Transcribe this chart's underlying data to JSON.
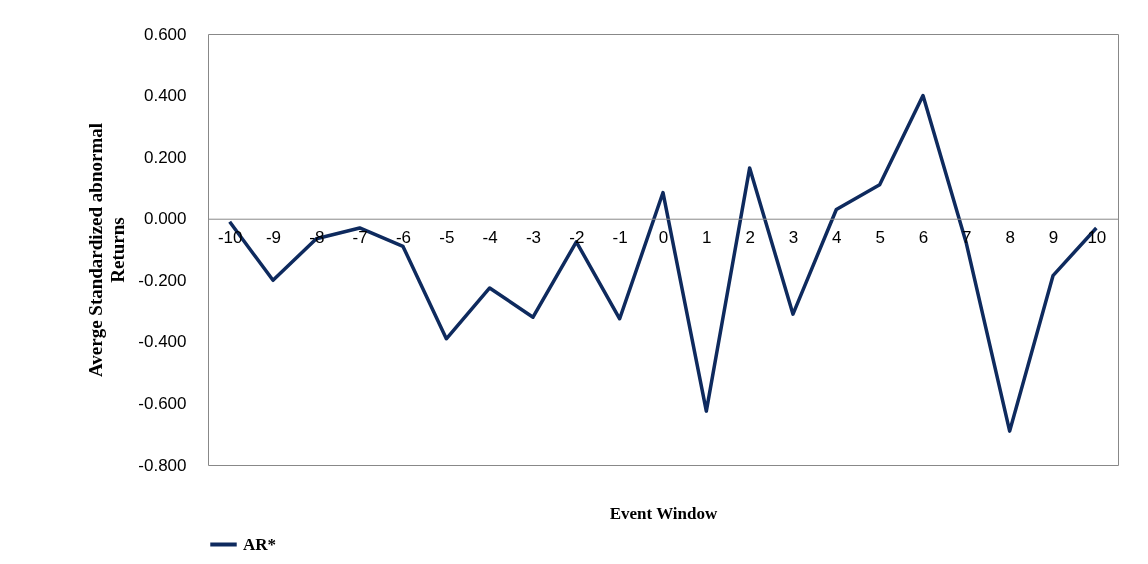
{
  "chart_data": {
    "type": "line",
    "xlabel": "Event Window",
    "ylabel": "Averge Standardized abnormal Returns",
    "categories": [
      "-10",
      "-9",
      "-8",
      "-7",
      "-6",
      "-5",
      "-4",
      "-3",
      "-2",
      "-1",
      "0",
      "1",
      "2",
      "3",
      "4",
      "5",
      "6",
      "7",
      "8",
      "9",
      "10"
    ],
    "series": [
      {
        "name": "AR*",
        "color": "#0e2a5e",
        "values": [
          -0.01,
          -0.2,
          -0.065,
          -0.03,
          -0.09,
          -0.39,
          -0.225,
          -0.32,
          -0.075,
          -0.325,
          0.085,
          -0.625,
          0.165,
          -0.31,
          0.03,
          0.11,
          0.4,
          -0.08,
          -0.69,
          -0.185,
          -0.03
        ]
      }
    ],
    "ylim": [
      -0.8,
      0.6
    ],
    "yticks": [
      {
        "value": -0.8,
        "label": "-0.800"
      },
      {
        "value": -0.6,
        "label": "-0.600"
      },
      {
        "value": -0.4,
        "label": "-0.400"
      },
      {
        "value": -0.2,
        "label": "-0.200"
      },
      {
        "value": 0,
        "label": "0.000"
      },
      {
        "value": 0.2,
        "label": "0.200"
      },
      {
        "value": 0.4,
        "label": "0.400"
      },
      {
        "value": 0.6,
        "label": "0.600"
      }
    ],
    "grid": false,
    "legend": "bottom",
    "marker": "none",
    "line_style": "solid"
  }
}
